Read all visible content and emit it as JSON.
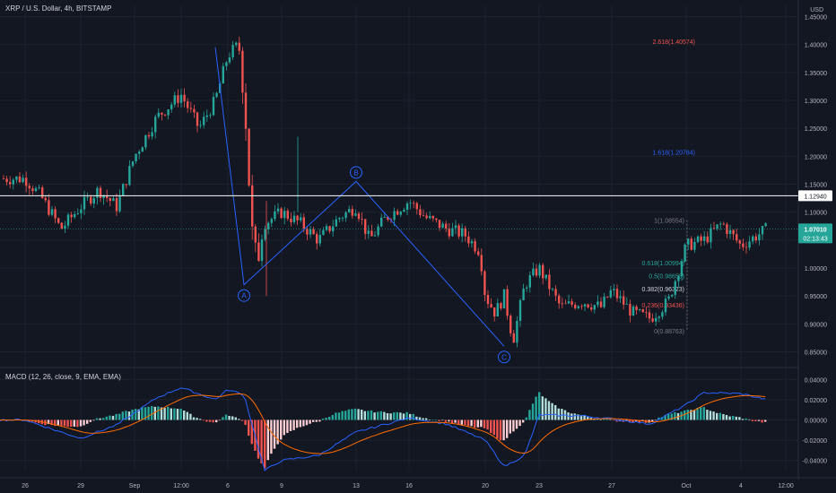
{
  "header": {
    "title": "XRP / U.S. Dollar, 4h, BITSTAMP",
    "currency": "USD"
  },
  "macd": {
    "title": "MACD (12, 26, close, 9, EMA, EMA)"
  },
  "price_tags": {
    "hline_value": "1.12940",
    "current_price": "1.07010",
    "countdown": "02:13:43"
  },
  "colors": {
    "up": "#26a69a",
    "down": "#ef5350",
    "wave": "#2962ff",
    "macd_line": "#2962ff",
    "signal_line": "#ff6d00",
    "hline": "#ffffff",
    "current": "#26a69a"
  },
  "chart_data": [
    {
      "type": "candlestick",
      "title": "XRP / U.S. Dollar, 4h, BITSTAMP",
      "x_ticks": [
        "26",
        "29",
        "Sep",
        "12:00",
        "6",
        "9",
        "13",
        "16",
        "20",
        "23",
        "27",
        "Oct",
        "4",
        "12:00"
      ],
      "y_ticks": [
        "1.45000",
        "1.40000",
        "1.35000",
        "1.30000",
        "1.25000",
        "1.20000",
        "1.15000",
        "1.10000",
        "1.05000",
        "1.00000",
        "0.95000",
        "0.90000",
        "0.85000"
      ],
      "ylim": [
        0.83,
        1.47
      ],
      "anchors": [
        {
          "x": "26",
          "close": 1.16
        },
        {
          "x": "Aug 27",
          "close": 1.13
        },
        {
          "x": "Aug 28",
          "close": 1.07
        },
        {
          "x": "29",
          "close": 1.11
        },
        {
          "x": "Aug 30",
          "close": 1.14
        },
        {
          "x": "Aug 31",
          "close": 1.11
        },
        {
          "x": "Sep",
          "close": 1.2
        },
        {
          "x": "Sep 2",
          "close": 1.27
        },
        {
          "x": "12:00",
          "close": 1.31
        },
        {
          "x": "Sep 4",
          "close": 1.25
        },
        {
          "x": "Sep 5",
          "close": 1.3
        },
        {
          "x": "6",
          "close": 1.38
        },
        {
          "x": "Sep 6 12:00",
          "close": 1.4
        },
        {
          "x": "Sep 7",
          "close": 1.33
        },
        {
          "x": "Sep 7 12:00",
          "close": 1.0
        },
        {
          "x": "Sep 8",
          "close": 1.08
        },
        {
          "x": "9",
          "close": 1.1
        },
        {
          "x": "Sep 10",
          "close": 1.08
        },
        {
          "x": "Sep 11",
          "close": 1.05
        },
        {
          "x": "Sep 12",
          "close": 1.09
        },
        {
          "x": "13",
          "close": 1.11
        },
        {
          "x": "Sep 14",
          "close": 1.05
        },
        {
          "x": "Sep 15",
          "close": 1.09
        },
        {
          "x": "16",
          "close": 1.12
        },
        {
          "x": "Sep 17",
          "close": 1.09
        },
        {
          "x": "Sep 18",
          "close": 1.07
        },
        {
          "x": "Sep 19",
          "close": 1.06
        },
        {
          "x": "Sep 19 12:00",
          "close": 1.03
        },
        {
          "x": "20",
          "close": 0.95
        },
        {
          "x": "Sep 20 12:00",
          "close": 0.92
        },
        {
          "x": "Sep 21",
          "close": 0.95
        },
        {
          "x": "Sep 21 12:00",
          "close": 0.87
        },
        {
          "x": "Sep 22",
          "close": 0.97
        },
        {
          "x": "23",
          "close": 1.0
        },
        {
          "x": "Sep 24",
          "close": 0.93
        },
        {
          "x": "Sep 25",
          "close": 0.94
        },
        {
          "x": "Sep 26",
          "close": 0.93
        },
        {
          "x": "27",
          "close": 0.96
        },
        {
          "x": "Sep 28",
          "close": 0.92
        },
        {
          "x": "Sep 29",
          "close": 0.91
        },
        {
          "x": "Sep 30",
          "close": 0.94
        },
        {
          "x": "Oct",
          "close": 1.04
        },
        {
          "x": "Oct 2",
          "close": 1.05
        },
        {
          "x": "Oct 3",
          "close": 1.08
        },
        {
          "x": "4",
          "close": 1.04
        },
        {
          "x": "Oct 5",
          "close": 1.07
        }
      ],
      "horizontal_line": {
        "value": 1.1294,
        "label": "1.12940"
      },
      "current_price": {
        "value": 1.0701,
        "label": "1.07010",
        "countdown": "02:13:43"
      },
      "fibonacci": [
        {
          "ratio": "2.618",
          "value": 1.40574,
          "label": "2.618(1.40574)",
          "color": "#ef5350"
        },
        {
          "ratio": "1.618",
          "value": 1.20784,
          "label": "1.618(1.20784)",
          "color": "#2962ff"
        },
        {
          "ratio": "1",
          "value": 1.08554,
          "label": "1(1.08554)",
          "color": "#787b86"
        },
        {
          "ratio": "0.618",
          "value": 1.00994,
          "label": "0.618(1.00994)",
          "color": "#26a69a"
        },
        {
          "ratio": "0.5",
          "value": 0.98658,
          "label": "0.5(0.98658)",
          "color": "#26a69a"
        },
        {
          "ratio": "0.382",
          "value": 0.96323,
          "label": "0.382(0.96323)",
          "color": "#d1d4dc"
        },
        {
          "ratio": "0.236",
          "value": 0.93436,
          "label": "0.236(0.93436)",
          "color": "#ef5350"
        },
        {
          "ratio": "0",
          "value": 0.88763,
          "label": "0(0.88763)",
          "color": "#787b86"
        }
      ],
      "waves": [
        {
          "label": "A",
          "x": "Sep 7",
          "value": 0.97
        },
        {
          "label": "B",
          "x": "13",
          "value": 1.155
        },
        {
          "label": "C",
          "x": "Sep 21",
          "value": 0.86
        }
      ],
      "wave_start": {
        "x": "Sep 5",
        "value": 1.395
      }
    },
    {
      "type": "bar",
      "title": "MACD (12, 26, close, 9, EMA, EMA)",
      "series": [
        {
          "name": "MACD"
        },
        {
          "name": "Signal"
        },
        {
          "name": "Histogram"
        }
      ],
      "y_ticks": [
        "0.04000",
        "0.02000",
        "0.00000",
        "-0.02000",
        "-0.04000"
      ],
      "ylim": [
        -0.05,
        0.05
      ],
      "macd_anchors": [
        {
          "x": "26",
          "macd": 0.0
        },
        {
          "x": "Aug 28",
          "macd": -0.012
        },
        {
          "x": "29",
          "macd": -0.018
        },
        {
          "x": "Aug 31",
          "macd": -0.005
        },
        {
          "x": "Sep 2",
          "macd": 0.022
        },
        {
          "x": "12:00",
          "macd": 0.032
        },
        {
          "x": "Sep 5",
          "macd": 0.02
        },
        {
          "x": "6",
          "macd": 0.03
        },
        {
          "x": "Sep 7",
          "macd": 0.025
        },
        {
          "x": "Sep 8",
          "macd": -0.05
        },
        {
          "x": "9",
          "macd": -0.04
        },
        {
          "x": "Sep 11",
          "macd": -0.035
        },
        {
          "x": "13",
          "macd": -0.012
        },
        {
          "x": "16",
          "macd": 0.002
        },
        {
          "x": "Sep 18",
          "macd": -0.004
        },
        {
          "x": "20",
          "macd": -0.02
        },
        {
          "x": "Sep 21",
          "macd": -0.046
        },
        {
          "x": "Sep 22",
          "macd": -0.035
        },
        {
          "x": "23",
          "macd": 0.005
        },
        {
          "x": "Sep 25",
          "macd": 0.004
        },
        {
          "x": "27",
          "macd": 0.001
        },
        {
          "x": "Sep 29",
          "macd": -0.004
        },
        {
          "x": "Oct",
          "macd": 0.015
        },
        {
          "x": "Oct 2",
          "macd": 0.027
        },
        {
          "x": "4",
          "macd": 0.026
        },
        {
          "x": "Oct 5",
          "macd": 0.02
        }
      ]
    }
  ]
}
